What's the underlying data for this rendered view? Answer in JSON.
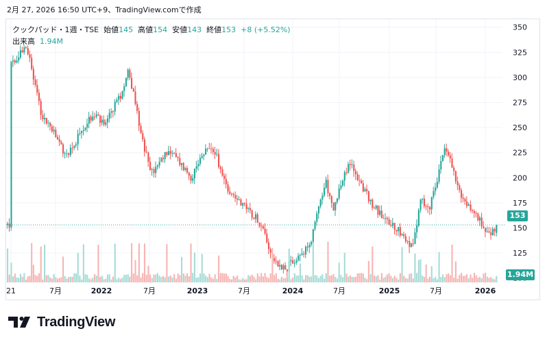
{
  "caption": "2月 27, 2026 16:50 UTC+9、TradingView.comで作成",
  "legend": {
    "symbol": "クックパッド・1週・TSE",
    "open_label": "始値",
    "open": "145",
    "high_label": "高値",
    "high": "154",
    "low_label": "安値",
    "low": "143",
    "close_label": "終値",
    "close": "153",
    "change": "+8 (+5.52%)"
  },
  "volume_legend": {
    "label": "出来高",
    "value": "1.94M"
  },
  "last_price_tag": "153",
  "volume_tag": "1.94M",
  "brand": "TradingView",
  "colors": {
    "up": "#26a69a",
    "down": "#ef5350",
    "up_vol": "#a6dcd6",
    "down_vol": "#f7b4b2",
    "grid": "#f0f3fa"
  },
  "chart_data": {
    "type": "candlestick",
    "interval": "1週",
    "exchange": "TSE",
    "y_axis": {
      "ticks": [
        100,
        125,
        150,
        175,
        200,
        225,
        250,
        275,
        300,
        325,
        350
      ],
      "range": [
        95,
        358
      ],
      "position": "right"
    },
    "x_axis": {
      "ticks": [
        "21",
        "7月",
        "2022",
        "7月",
        "2023",
        "7月",
        "2024",
        "7月",
        "2025",
        "7月",
        "2026"
      ]
    },
    "last_close": 153,
    "price_path": [
      [
        "2021-01",
        312
      ],
      [
        "2021-02",
        318
      ],
      [
        "2021-03",
        335
      ],
      [
        "2021-04",
        300
      ],
      [
        "2021-05",
        262
      ],
      [
        "2021-06",
        252
      ],
      [
        "2021-07",
        238
      ],
      [
        "2021-08",
        222
      ],
      [
        "2021-09",
        232
      ],
      [
        "2021-10",
        245
      ],
      [
        "2021-11",
        258
      ],
      [
        "2021-12",
        262
      ],
      [
        "2022-01",
        250
      ],
      [
        "2022-02",
        268
      ],
      [
        "2022-03",
        282
      ],
      [
        "2022-04",
        308
      ],
      [
        "2022-05",
        270
      ],
      [
        "2022-06",
        228
      ],
      [
        "2022-07",
        205
      ],
      [
        "2022-08",
        214
      ],
      [
        "2022-09",
        228
      ],
      [
        "2022-10",
        220
      ],
      [
        "2022-11",
        210
      ],
      [
        "2022-12",
        200
      ],
      [
        "2023-01",
        215
      ],
      [
        "2023-02",
        230
      ],
      [
        "2023-03",
        225
      ],
      [
        "2023-04",
        198
      ],
      [
        "2023-05",
        185
      ],
      [
        "2023-06",
        178
      ],
      [
        "2023-07",
        168
      ],
      [
        "2023-08",
        162
      ],
      [
        "2023-09",
        150
      ],
      [
        "2023-10",
        125
      ],
      [
        "2023-11",
        112
      ],
      [
        "2023-12",
        110
      ],
      [
        "2024-01",
        118
      ],
      [
        "2024-02",
        122
      ],
      [
        "2024-03",
        135
      ],
      [
        "2024-04",
        170
      ],
      [
        "2024-05",
        195
      ],
      [
        "2024-06",
        168
      ],
      [
        "2024-07",
        195
      ],
      [
        "2024-08",
        215
      ],
      [
        "2024-09",
        200
      ],
      [
        "2024-10",
        185
      ],
      [
        "2024-11",
        172
      ],
      [
        "2024-12",
        162
      ],
      [
        "2025-01",
        155
      ],
      [
        "2025-02",
        150
      ],
      [
        "2025-03",
        140
      ],
      [
        "2025-04",
        130
      ],
      [
        "2025-05",
        180
      ],
      [
        "2025-06",
        168
      ],
      [
        "2025-07",
        198
      ],
      [
        "2025-08",
        228
      ],
      [
        "2025-09",
        210
      ],
      [
        "2025-10",
        180
      ],
      [
        "2025-11",
        172
      ],
      [
        "2025-12",
        162
      ],
      [
        "2026-01",
        150
      ],
      [
        "2026-02",
        145
      ],
      [
        "2026-02-27",
        153
      ]
    ]
  }
}
